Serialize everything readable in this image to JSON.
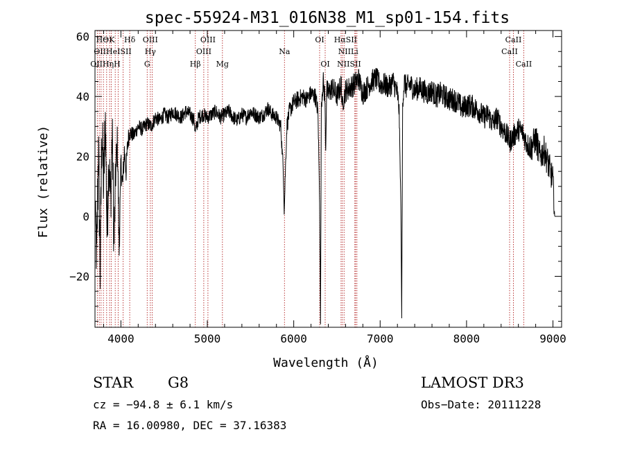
{
  "chart_data": {
    "type": "line",
    "title": "spec-55924-M31_016N38_M1_sp01-154.fits",
    "xlabel": "Wavelength (Å)",
    "ylabel": "Flux (relative)",
    "xlim": [
      3700,
      9100
    ],
    "ylim": [
      -37,
      62
    ],
    "xticks": [
      4000,
      5000,
      6000,
      7000,
      8000,
      9000
    ],
    "yticks": [
      -20,
      0,
      20,
      40,
      60
    ],
    "grid": false,
    "line_color": "#000000",
    "marker_color": "#b22222",
    "series": [
      {
        "x": [
          3700,
          3720,
          3740,
          3760,
          3780,
          3800,
          3820,
          3840,
          3860,
          3880,
          3900,
          3920,
          3940,
          3960,
          3980,
          4000,
          4020,
          4040,
          4060,
          4080,
          4100,
          4150,
          4200,
          4250,
          4300,
          4350,
          4400,
          4450,
          4500,
          4550,
          4600,
          4650,
          4700,
          4750,
          4800,
          4850,
          4860,
          4900,
          4950,
          5000,
          5050,
          5100,
          5150,
          5200,
          5250,
          5300,
          5350,
          5400,
          5450,
          5500,
          5550,
          5600,
          5650,
          5700,
          5750,
          5800,
          5850,
          5880,
          5890,
          5900,
          5920,
          5950,
          6000,
          6050,
          6100,
          6150,
          6200,
          6250,
          6280,
          6300,
          6310,
          6320,
          6340,
          6360,
          6370,
          6380,
          6400,
          6450,
          6500,
          6550,
          6563,
          6600,
          6650,
          6700,
          6750,
          6800,
          6850,
          6900,
          6950,
          7000,
          7050,
          7100,
          7150,
          7200,
          7220,
          7240,
          7250,
          7260,
          7280,
          7300,
          7350,
          7400,
          7450,
          7500,
          7550,
          7600,
          7650,
          7700,
          7750,
          7800,
          7850,
          7900,
          7950,
          8000,
          8050,
          8100,
          8150,
          8200,
          8250,
          8300,
          8350,
          8400,
          8450,
          8500,
          8550,
          8600,
          8650,
          8700,
          8750,
          8800,
          8850,
          8900,
          8950,
          9000,
          9020
        ],
        "y": [
          5,
          -15,
          25,
          -18,
          30,
          10,
          33,
          -5,
          20,
          5,
          28,
          -10,
          15,
          25,
          -12,
          18,
          10,
          22,
          15,
          25,
          28,
          27,
          30,
          29,
          31,
          30,
          33,
          32,
          34,
          33,
          35,
          34,
          33,
          35,
          34,
          32,
          28,
          33,
          34,
          33,
          34,
          35,
          33,
          34,
          35,
          33,
          32,
          34,
          33,
          35,
          34,
          33,
          34,
          36,
          34,
          33,
          30,
          15,
          1,
          12,
          30,
          35,
          38,
          39,
          40,
          39,
          41,
          40,
          35,
          5,
          -36,
          38,
          45,
          40,
          22,
          42,
          41,
          43,
          40,
          44,
          37,
          42,
          43,
          44,
          46,
          41,
          43,
          45,
          46,
          44,
          44,
          43,
          45,
          41,
          35,
          3,
          -34,
          38,
          45,
          43,
          44,
          42,
          43,
          42,
          41,
          42,
          40,
          41,
          40,
          39,
          39,
          38,
          36,
          37,
          37,
          36,
          35,
          33,
          34,
          31,
          33,
          30,
          28,
          25,
          27,
          29,
          28,
          24,
          23,
          26,
          20,
          22,
          17,
          12,
          0
        ],
        "noise": [
          4,
          14,
          12,
          14,
          12,
          12,
          10,
          12,
          10,
          12,
          10,
          12,
          8,
          7,
          6,
          5,
          5,
          4,
          4,
          4,
          3,
          2.5,
          2.5,
          2.5,
          2.5,
          2.5,
          2.5,
          2.5,
          2.5,
          2.5,
          2.5,
          2.5,
          2.5,
          2.5,
          2.5,
          2.5,
          2.5,
          2.5,
          2.5,
          2.5,
          2.5,
          2.5,
          2.5,
          2.5,
          2.5,
          2.5,
          2.5,
          2.5,
          2.5,
          2.5,
          2.5,
          2.5,
          2.5,
          2.5,
          2.5,
          2.5,
          2.5,
          2.5,
          0.5,
          2.5,
          3,
          3,
          3,
          3,
          3,
          3,
          3,
          3,
          3,
          1,
          0,
          3,
          4,
          4,
          2,
          4,
          4,
          4,
          4,
          4,
          3,
          4,
          4,
          4,
          4,
          4,
          4,
          4,
          4,
          4,
          4,
          4,
          4,
          4,
          3,
          1,
          0,
          3,
          4,
          4,
          4,
          4,
          4,
          4,
          4,
          4,
          4,
          4,
          4,
          4,
          4,
          4,
          4,
          4,
          4,
          4,
          4,
          4,
          4,
          4,
          4,
          4,
          4,
          4,
          4,
          4,
          4,
          4,
          5,
          5,
          5,
          5,
          5,
          5,
          3
        ]
      }
    ],
    "lines": [
      {
        "label": "HΘK",
        "x": 3820,
        "row": 0
      },
      {
        "label": "Hδ",
        "x": 4102,
        "row": 0
      },
      {
        "label": "OIII",
        "x": 4340,
        "row": 0
      },
      {
        "label": "OIII",
        "x": 5007,
        "row": 0
      },
      {
        "label": "OI",
        "x": 6300,
        "row": 0
      },
      {
        "label": "HαSII",
        "x": 6600,
        "row": 0
      },
      {
        "label": "CaII",
        "x": 8542,
        "row": 0
      },
      {
        "label": "OIIHeISII",
        "x": 3905,
        "row": 1
      },
      {
        "label": "Hγ",
        "x": 4340,
        "row": 1
      },
      {
        "label": "OIII",
        "x": 4959,
        "row": 1
      },
      {
        "label": "Na",
        "x": 5893,
        "row": 1
      },
      {
        "label": "NIILi",
        "x": 6630,
        "row": 1
      },
      {
        "label": "CaII",
        "x": 8498,
        "row": 1
      },
      {
        "label": "OIIHηH",
        "x": 3820,
        "row": 2
      },
      {
        "label": "G",
        "x": 4304,
        "row": 2
      },
      {
        "label": "Hβ",
        "x": 4861,
        "row": 2
      },
      {
        "label": "Mg",
        "x": 5175,
        "row": 2
      },
      {
        "label": "OI",
        "x": 6364,
        "row": 2
      },
      {
        "label": "NIISII",
        "x": 6640,
        "row": 2
      },
      {
        "label": "CaII",
        "x": 8662,
        "row": 2
      }
    ],
    "line_positions": [
      3727,
      3750,
      3771,
      3798,
      3835,
      3869,
      3889,
      3934,
      3968,
      4026,
      4102,
      4304,
      4340,
      4363,
      4861,
      4959,
      5007,
      5175,
      5893,
      6300,
      6364,
      6548,
      6563,
      6583,
      6707,
      6716,
      6731,
      8498,
      8542,
      8662
    ]
  },
  "info": {
    "object_class": "STAR",
    "subclass": "G8",
    "survey": "LAMOST DR3",
    "cz": "cz = −94.8 ± 6.1 km/s",
    "obs_date": "Obs−Date: 20111228",
    "coords": "RA =  16.00980, DEC =  37.16383"
  }
}
